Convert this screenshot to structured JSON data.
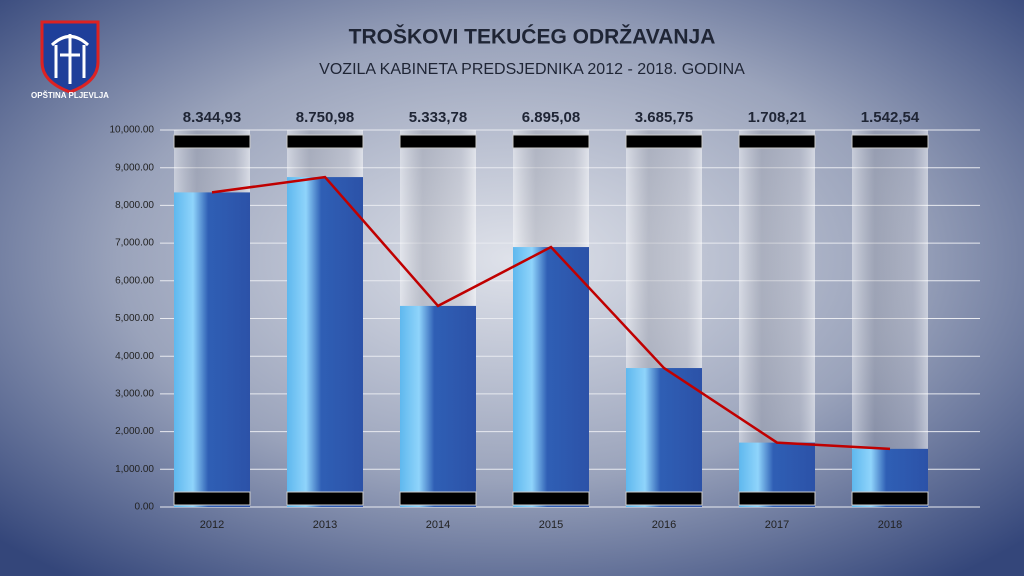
{
  "logo_text": "OPŠTINA PLJEVLJA",
  "chart_data": {
    "type": "bar",
    "title": "TROŠKOVI TEKUĆEG ODRŽAVANJA",
    "subtitle": "VOZILA KABINETA PREDSJEDNIKA  2012 - 2018. GODINA",
    "categories": [
      "2012",
      "2013",
      "2014",
      "2015",
      "2016",
      "2017",
      "2018"
    ],
    "values": [
      8344.93,
      8750.98,
      5333.78,
      6895.08,
      3685.75,
      1708.21,
      1542.54
    ],
    "value_labels": [
      "8.344,93",
      "8.750,98",
      "5.333,78",
      "6.895,08",
      "3.685,75",
      "1.708,21",
      "1.542,54"
    ],
    "line_overlay": true,
    "line_color": "#c00000",
    "ylim": [
      0,
      10000
    ],
    "yticks": [
      {
        "value": 0,
        "label": "0.00"
      },
      {
        "value": 1000,
        "label": "1,000.00"
      },
      {
        "value": 2000,
        "label": "2,000.00"
      },
      {
        "value": 3000,
        "label": "3,000.00"
      },
      {
        "value": 4000,
        "label": "4,000.00"
      },
      {
        "value": 5000,
        "label": "5,000.00"
      },
      {
        "value": 6000,
        "label": "6,000.00"
      },
      {
        "value": 7000,
        "label": "7,000.00"
      },
      {
        "value": 8000,
        "label": "8,000.00"
      },
      {
        "value": 9000,
        "label": "9,000.00"
      },
      {
        "value": 10000,
        "label": "10,000.00"
      }
    ],
    "grid": true
  }
}
